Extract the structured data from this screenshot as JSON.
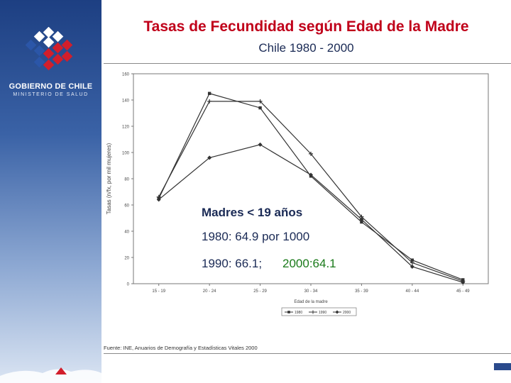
{
  "header": {
    "title": "Tasas de Fecundidad según Edad de la Madre",
    "subtitle": "Chile 1980 - 2000"
  },
  "sidebar": {
    "org_name": "GOBIERNO DE CHILE",
    "org_sub": "MINISTERIO DE SALUD",
    "logo_icon": "government-logo-icon"
  },
  "annotation": {
    "title": "Madres < 19 años",
    "line_1980": "1980: 64.9 por 1000",
    "line_1990": "1990: 66.1;",
    "line_2000": "2000:64.1",
    "color_2000": "#1a7a1a"
  },
  "source": "Fuente: INE, Anuarios de Demografía y Estadísticas Vitales 2000",
  "colors": {
    "title": "#c0001a",
    "sidebar": "#1d3f82",
    "series_line": "#333333"
  },
  "chart_data": {
    "type": "line",
    "xlabel": "Edad de la madre",
    "ylabel": "Tasas (n/fx, por mil mujeres)",
    "ylim": [
      0,
      160
    ],
    "yticks": [
      0,
      20,
      40,
      60,
      80,
      100,
      120,
      140,
      160
    ],
    "categories": [
      "15 - 19",
      "20 - 24",
      "25 - 29",
      "30 - 34",
      "35 - 39",
      "40 - 44",
      "45 - 49"
    ],
    "series": [
      {
        "name": "1980",
        "marker": "square",
        "values": [
          64.9,
          145,
          134,
          82,
          47,
          18,
          3
        ]
      },
      {
        "name": "1990",
        "marker": "plus",
        "values": [
          66.1,
          139,
          139,
          99,
          51,
          16,
          2
        ]
      },
      {
        "name": "2000",
        "marker": "diamond",
        "values": [
          64.1,
          96,
          106,
          83,
          49,
          13,
          1
        ]
      }
    ],
    "grid": false,
    "legend": "bottom"
  }
}
